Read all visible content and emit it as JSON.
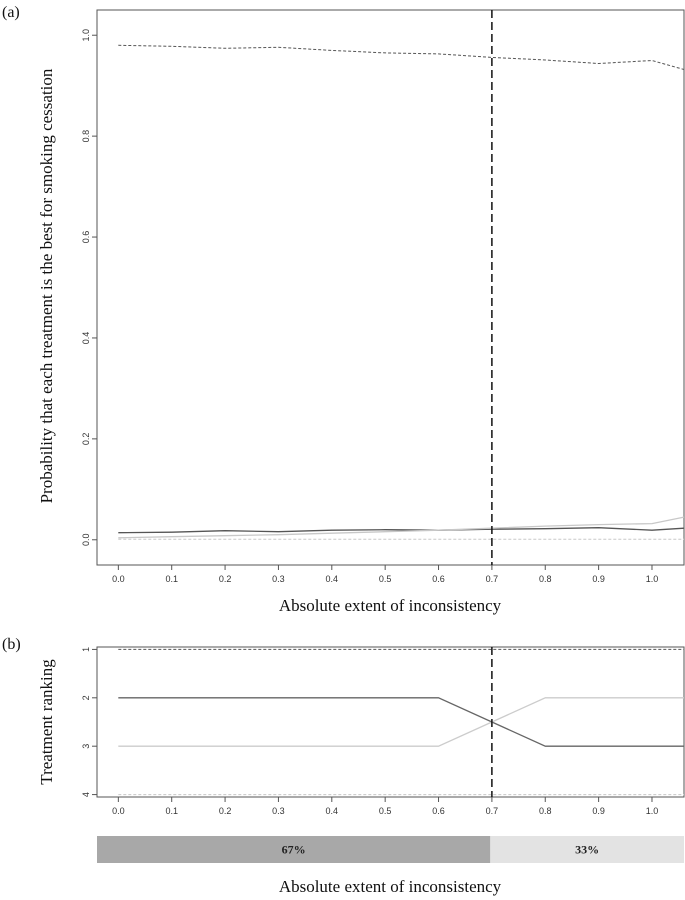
{
  "chart_data": [
    {
      "panel": "(a)",
      "type": "line",
      "xlabel": "Absolute extent of inconsistency",
      "ylabel": "Probability that each treatment is the best for smoking cessation",
      "x": [
        0.0,
        0.1,
        0.2,
        0.3,
        0.4,
        0.5,
        0.6,
        0.7,
        0.8,
        0.9,
        1.0,
        1.06
      ],
      "xticks": [
        "0.0",
        "0.1",
        "0.2",
        "0.3",
        "0.4",
        "0.5",
        "0.6",
        "0.7",
        "0.8",
        "0.9",
        "1.0"
      ],
      "yticks": [
        "0.0",
        "0.2",
        "0.4",
        "0.6",
        "0.8",
        "1.0"
      ],
      "xlim": [
        -0.04,
        1.06
      ],
      "ylim": [
        -0.05,
        1.05
      ],
      "vline": 0.7,
      "series": [
        {
          "values": [
            0.98,
            0.978,
            0.974,
            0.976,
            0.97,
            0.965,
            0.963,
            0.956,
            0.951,
            0.944,
            0.95,
            0.932
          ],
          "color": "#555555",
          "dash": "3,2",
          "width": 1
        },
        {
          "values": [
            0.014,
            0.015,
            0.018,
            0.016,
            0.019,
            0.02,
            0.019,
            0.021,
            0.022,
            0.024,
            0.019,
            0.023
          ],
          "color": "#555555",
          "dash": "",
          "width": 1.3
        },
        {
          "values": [
            0.004,
            0.006,
            0.008,
            0.01,
            0.013,
            0.016,
            0.019,
            0.023,
            0.027,
            0.03,
            0.032,
            0.045
          ],
          "color": "#c8c8c8",
          "dash": "",
          "width": 1.3
        },
        {
          "values": [
            0.001,
            0.001,
            0.001,
            0.001,
            0.001,
            0.001,
            0.001,
            0.001,
            0.001,
            0.001,
            0.001,
            0.001
          ],
          "color": "#c8c8c8",
          "dash": "3,2",
          "width": 1
        }
      ]
    },
    {
      "panel": "(b)",
      "type": "line",
      "xlabel": "Absolute extent of inconsistency",
      "ylabel": "Treatment ranking",
      "x": [
        0.0,
        0.6,
        0.8,
        1.06
      ],
      "xticks": [
        "0.0",
        "0.1",
        "0.2",
        "0.3",
        "0.4",
        "0.5",
        "0.6",
        "0.7",
        "0.8",
        "0.9",
        "1.0"
      ],
      "yticks": [
        "1",
        "2",
        "3",
        "4"
      ],
      "xlim": [
        -0.04,
        1.06
      ],
      "ylim": [
        4.05,
        0.95
      ],
      "vline": 0.7,
      "series": [
        {
          "values": [
            1,
            1,
            1,
            1
          ],
          "color": "#555555",
          "dash": "3,2",
          "width": 1
        },
        {
          "values": [
            2,
            2,
            3,
            3
          ],
          "color": "#666666",
          "dash": "",
          "width": 1.3
        },
        {
          "values": [
            3,
            3,
            2,
            2
          ],
          "color": "#cccccc",
          "dash": "",
          "width": 1.3
        },
        {
          "values": [
            4,
            4,
            4,
            4
          ],
          "color": "#c8c8c8",
          "dash": "3,2",
          "width": 1
        }
      ]
    },
    {
      "type": "bar",
      "orientation": "horizontal-stacked",
      "xlabel": "Absolute extent of inconsistency",
      "values": [
        67,
        33
      ],
      "labels": [
        "67%",
        "33%"
      ],
      "colors": [
        "#a8a8a8",
        "#e3e3e3"
      ]
    }
  ]
}
